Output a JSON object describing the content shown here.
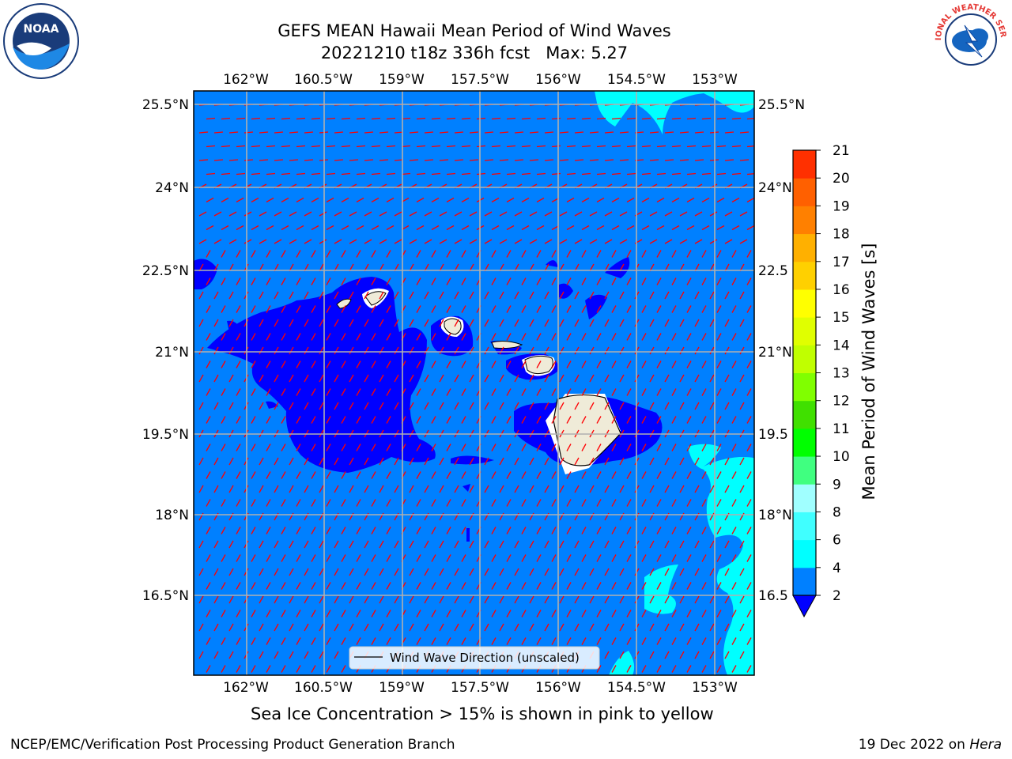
{
  "title": {
    "line1": "GEFS MEAN Hawaii Mean Period of Wind Waves",
    "line2": "20221210 t18z 336h fcst   Max: 5.27"
  },
  "map": {
    "lon_ticks": [
      "162°W",
      "160.5°W",
      "159°W",
      "157.5°W",
      "156°W",
      "154.5°W",
      "153°W"
    ],
    "lat_ticks": [
      "25.5°N",
      "24°N",
      "22.5°N",
      "21°N",
      "19.5°N",
      "18°N",
      "16.5°N"
    ],
    "lat_ticks_right": [
      "25.5°N",
      "24°N",
      "22.5",
      "21°N",
      "19.5",
      "18°N",
      "16.5"
    ],
    "legend_label": "Wind Wave Direction (unscaled)",
    "water_color": "#0080ff",
    "low_color": "#0000ff",
    "high_color": "#00ffff",
    "land_color": "#efebd8",
    "arrow_color": "#ff0000"
  },
  "colorbar": {
    "label": "Mean Period of Wind Waves [s]",
    "ticks": [
      "2",
      "4",
      "6",
      "8",
      "9",
      "10",
      "11",
      "12",
      "13",
      "14",
      "15",
      "16",
      "17",
      "18",
      "19",
      "20",
      "21"
    ],
    "colors": [
      "#0080ff",
      "#00ffff",
      "#40ffff",
      "#a0ffff",
      "#40ff80",
      "#00ff00",
      "#40e000",
      "#80ff00",
      "#c0ff00",
      "#e0ff00",
      "#ffff00",
      "#ffd000",
      "#ffb000",
      "#ff8000",
      "#ff6000",
      "#ff3000",
      "#ff0000"
    ],
    "under_color": "#0000ff"
  },
  "caption": "Sea Ice Concentration > 15% is shown in pink to yellow",
  "footer": {
    "left": "NCEP/EMC/Verification Post Processing Product Generation Branch",
    "right_prefix": "19 Dec 2022 on ",
    "right_machine": "Hera"
  },
  "logos": {
    "noaa_text": "NOAA",
    "nws_text": "NATIONAL WEATHER SERVICE"
  }
}
